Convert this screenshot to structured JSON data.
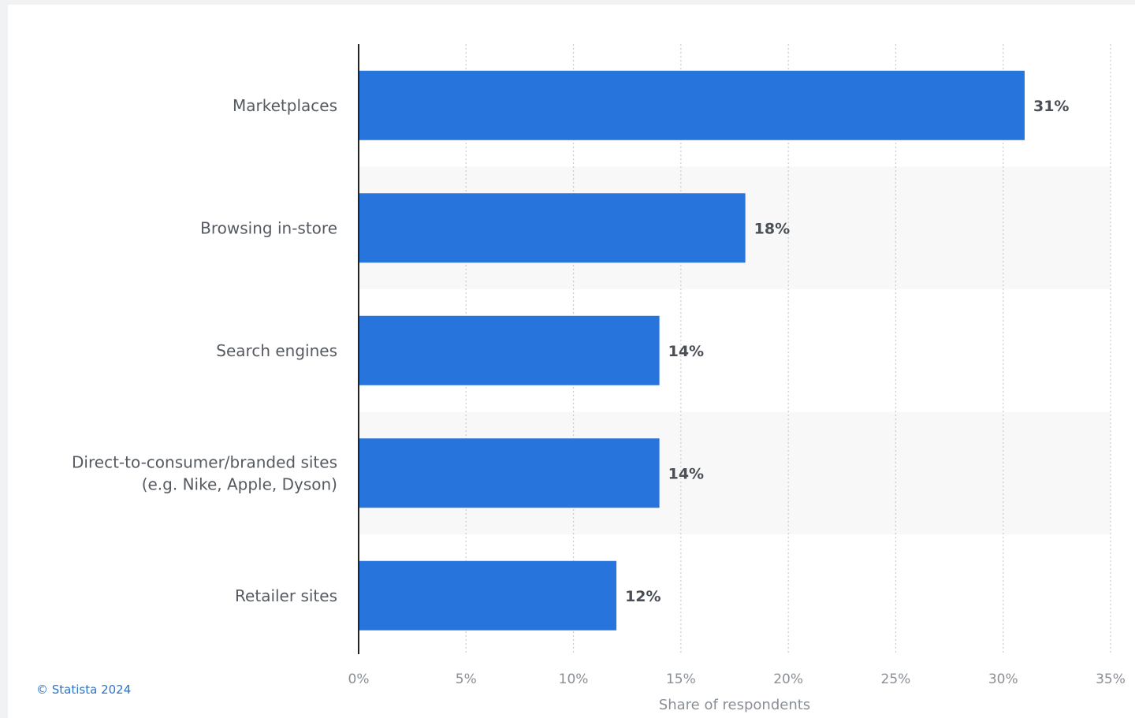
{
  "credit": "© Statista 2024",
  "colors": {
    "bar": "#2775dc",
    "band": "#f8f8f8",
    "grid": "#c8cbd0",
    "axis": "#222222"
  },
  "chart_data": {
    "type": "bar",
    "orientation": "horizontal",
    "categories": [
      "Marketplaces",
      "Browsing in-store",
      "Search engines",
      "Direct-to-consumer/branded sites (e.g. Nike, Apple, Dyson)",
      "Retailer sites"
    ],
    "category_lines": [
      [
        "Marketplaces"
      ],
      [
        "Browsing in-store"
      ],
      [
        "Search engines"
      ],
      [
        "Direct-to-consumer/branded sites",
        "(e.g. Nike, Apple, Dyson)"
      ],
      [
        "Retailer sites"
      ]
    ],
    "values": [
      31,
      18,
      14,
      14,
      12
    ],
    "value_labels": [
      "31%",
      "18%",
      "14%",
      "14%",
      "12%"
    ],
    "xlabel": "Share of respondents",
    "xlim": [
      0,
      35
    ],
    "ticks": [
      0,
      5,
      10,
      15,
      20,
      25,
      30,
      35
    ],
    "tick_labels": [
      "0%",
      "5%",
      "10%",
      "15%",
      "20%",
      "25%",
      "30%",
      "35%"
    ],
    "grid": true,
    "grid_style": "dotted vertical",
    "alternating_bands": true
  }
}
